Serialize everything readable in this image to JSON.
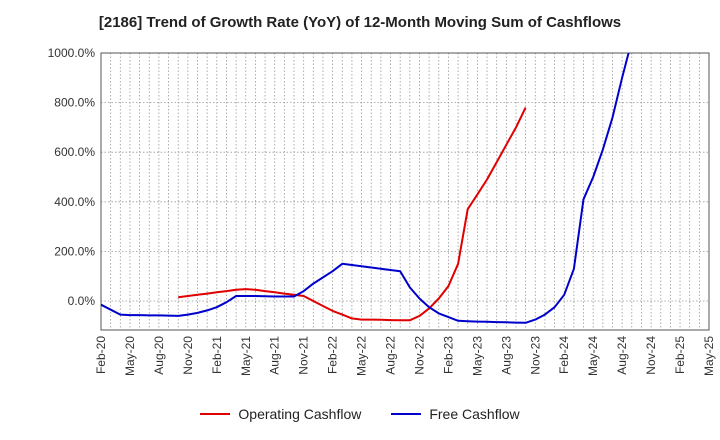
{
  "chart_data": {
    "type": "line",
    "title": "[2186]  Trend of Growth Rate (YoY) of 12-Month Moving Sum of Cashflows",
    "xlabel": "",
    "ylabel": "",
    "x_tick_labels": [
      "Feb-20",
      "May-20",
      "Aug-20",
      "Nov-20",
      "Feb-21",
      "May-21",
      "Aug-21",
      "Nov-21",
      "Feb-22",
      "May-22",
      "Aug-22",
      "Nov-22",
      "Feb-23",
      "May-23",
      "Aug-23",
      "Nov-23",
      "Feb-24",
      "May-24",
      "Aug-24",
      "Nov-24",
      "Feb-25",
      "May-25"
    ],
    "y_tick_labels": [
      "0.0%",
      "200.0%",
      "400.0%",
      "600.0%",
      "800.0%",
      "1000.0%"
    ],
    "y_ticks": [
      0,
      200,
      400,
      600,
      800,
      1000
    ],
    "ylim": [
      -120,
      1000
    ],
    "grid": true,
    "legend_position": "bottom",
    "series": [
      {
        "name": "Operating Cashflow",
        "color": "#e00000",
        "points": [
          [
            8,
            15
          ],
          [
            9,
            20
          ],
          [
            10,
            25
          ],
          [
            11,
            30
          ],
          [
            12,
            35
          ],
          [
            13,
            40
          ],
          [
            14,
            45
          ],
          [
            15,
            48
          ],
          [
            16,
            45
          ],
          [
            17,
            40
          ],
          [
            18,
            35
          ],
          [
            19,
            30
          ],
          [
            20,
            25
          ],
          [
            21,
            20
          ],
          [
            22,
            0
          ],
          [
            23,
            -20
          ],
          [
            24,
            -40
          ],
          [
            25,
            -55
          ],
          [
            26,
            -70
          ],
          [
            27,
            -75
          ],
          [
            28,
            -75
          ],
          [
            29,
            -76
          ],
          [
            30,
            -77
          ],
          [
            31,
            -78
          ],
          [
            32,
            -78
          ],
          [
            33,
            -60
          ],
          [
            34,
            -30
          ],
          [
            35,
            10
          ],
          [
            36,
            60
          ],
          [
            37,
            150
          ],
          [
            38,
            370
          ],
          [
            39,
            430
          ],
          [
            40,
            490
          ],
          [
            41,
            560
          ],
          [
            42,
            630
          ],
          [
            43,
            700
          ],
          [
            44,
            780
          ]
        ]
      },
      {
        "name": "Free Cashflow",
        "color": "#0000cc",
        "points": [
          [
            -4,
            160
          ],
          [
            -3,
            90
          ],
          [
            -2,
            40
          ],
          [
            -1,
            10
          ],
          [
            0,
            -15
          ],
          [
            1,
            -35
          ],
          [
            2,
            -55
          ],
          [
            3,
            -57
          ],
          [
            4,
            -57
          ],
          [
            5,
            -58
          ],
          [
            6,
            -58
          ],
          [
            7,
            -59
          ],
          [
            8,
            -60
          ],
          [
            9,
            -55
          ],
          [
            10,
            -48
          ],
          [
            11,
            -38
          ],
          [
            12,
            -25
          ],
          [
            13,
            -5
          ],
          [
            14,
            20
          ],
          [
            15,
            20
          ],
          [
            16,
            20
          ],
          [
            17,
            19
          ],
          [
            18,
            18
          ],
          [
            19,
            18
          ],
          [
            20,
            18
          ],
          [
            21,
            40
          ],
          [
            22,
            70
          ],
          [
            23,
            95
          ],
          [
            24,
            120
          ],
          [
            25,
            150
          ],
          [
            26,
            145
          ],
          [
            27,
            140
          ],
          [
            28,
            135
          ],
          [
            29,
            130
          ],
          [
            30,
            125
          ],
          [
            31,
            120
          ],
          [
            32,
            55
          ],
          [
            33,
            10
          ],
          [
            34,
            -25
          ],
          [
            35,
            -50
          ],
          [
            36,
            -65
          ],
          [
            37,
            -80
          ],
          [
            38,
            -82
          ],
          [
            39,
            -83
          ],
          [
            40,
            -84
          ],
          [
            41,
            -85
          ],
          [
            42,
            -86
          ],
          [
            43,
            -87
          ],
          [
            44,
            -88
          ],
          [
            45,
            -75
          ],
          [
            46,
            -55
          ],
          [
            47,
            -25
          ],
          [
            48,
            25
          ],
          [
            49,
            130
          ],
          [
            50,
            410
          ],
          [
            51,
            500
          ],
          [
            52,
            610
          ],
          [
            53,
            740
          ],
          [
            54,
            900
          ],
          [
            55,
            1050
          ]
        ]
      }
    ]
  }
}
